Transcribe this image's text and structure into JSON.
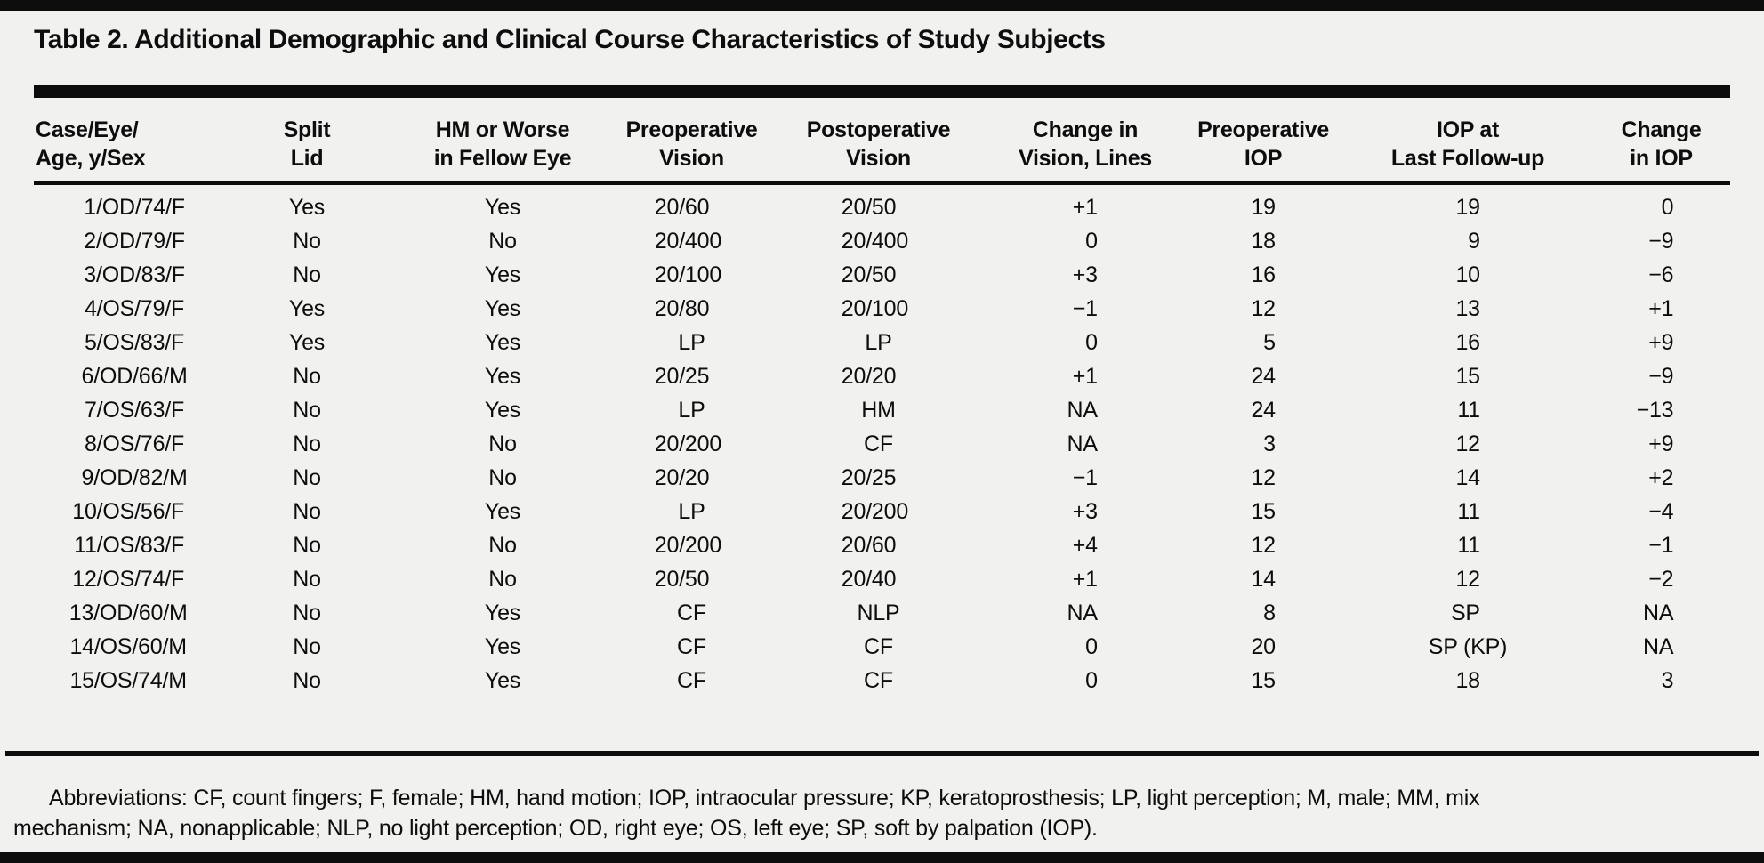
{
  "title": "Table 2. Additional Demographic and Clinical Course Characteristics of Study Subjects",
  "table": {
    "columns": [
      {
        "label_lines": [
          "Case/Eye/",
          "Age, y/Sex"
        ]
      },
      {
        "label_lines": [
          "Split",
          "Lid"
        ]
      },
      {
        "label_lines": [
          "HM or Worse",
          "in Fellow Eye"
        ]
      },
      {
        "label_lines": [
          "Preoperative",
          "Vision"
        ]
      },
      {
        "label_lines": [
          "Postoperative",
          "Vision"
        ]
      },
      {
        "label_lines": [
          "Change in",
          "Vision, Lines"
        ]
      },
      {
        "label_lines": [
          "Preoperative",
          "IOP"
        ]
      },
      {
        "label_lines": [
          "IOP at",
          "Last Follow-up"
        ]
      },
      {
        "label_lines": [
          "Change",
          "in IOP"
        ]
      }
    ],
    "rows": [
      [
        "1/OD/74/F",
        "Yes",
        "Yes",
        "20/60",
        "20/50",
        "+1",
        "19",
        "19",
        "0"
      ],
      [
        "2/OD/79/F",
        "No",
        "No",
        "20/400",
        "20/400",
        "0",
        "18",
        "9",
        "−9"
      ],
      [
        "3/OD/83/F",
        "No",
        "Yes",
        "20/100",
        "20/50",
        "+3",
        "16",
        "10",
        "−6"
      ],
      [
        "4/OS/79/F",
        "Yes",
        "Yes",
        "20/80",
        "20/100",
        "−1",
        "12",
        "13",
        "+1"
      ],
      [
        "5/OS/83/F",
        "Yes",
        "Yes",
        "LP",
        "LP",
        "0",
        "5",
        "16",
        "+9"
      ],
      [
        "6/OD/66/M",
        "No",
        "Yes",
        "20/25",
        "20/20",
        "+1",
        "24",
        "15",
        "−9"
      ],
      [
        "7/OS/63/F",
        "No",
        "Yes",
        "LP",
        "HM",
        "NA",
        "24",
        "11",
        "−13"
      ],
      [
        "8/OS/76/F",
        "No",
        "No",
        "20/200",
        "CF",
        "NA",
        "3",
        "12",
        "+9"
      ],
      [
        "9/OD/82/M",
        "No",
        "No",
        "20/20",
        "20/25",
        "−1",
        "12",
        "14",
        "+2"
      ],
      [
        "10/OS/56/F",
        "No",
        "Yes",
        "LP",
        "20/200",
        "+3",
        "15",
        "11",
        "−4"
      ],
      [
        "11/OS/83/F",
        "No",
        "No",
        "20/200",
        "20/60",
        "+4",
        "12",
        "11",
        "−1"
      ],
      [
        "12/OS/74/F",
        "No",
        "No",
        "20/50",
        "20/40",
        "+1",
        "14",
        "12",
        "−2"
      ],
      [
        "13/OD/60/M",
        "No",
        "Yes",
        "CF",
        "NLP",
        "NA",
        "8",
        "SP",
        "NA"
      ],
      [
        "14/OS/60/M",
        "No",
        "Yes",
        "CF",
        "CF",
        "0",
        "20",
        "SP (KP)",
        "NA"
      ],
      [
        "15/OS/74/M",
        "No",
        "Yes",
        "CF",
        "CF",
        "0",
        "15",
        "18",
        "3"
      ]
    ]
  },
  "footnote": {
    "lines": [
      "Abbreviations: CF, count fingers; F, female; HM, hand motion; IOP, intraocular pressure; KP, keratoprosthesis; LP, light perception; M, male; MM, mix",
      "mechanism; NA, nonapplicable; NLP, no light perception; OD, right eye; OS, left eye; SP, soft by palpation (IOP)."
    ]
  },
  "colors": {
    "background": "#f1f1ef",
    "ink": "#0d0d0d"
  }
}
